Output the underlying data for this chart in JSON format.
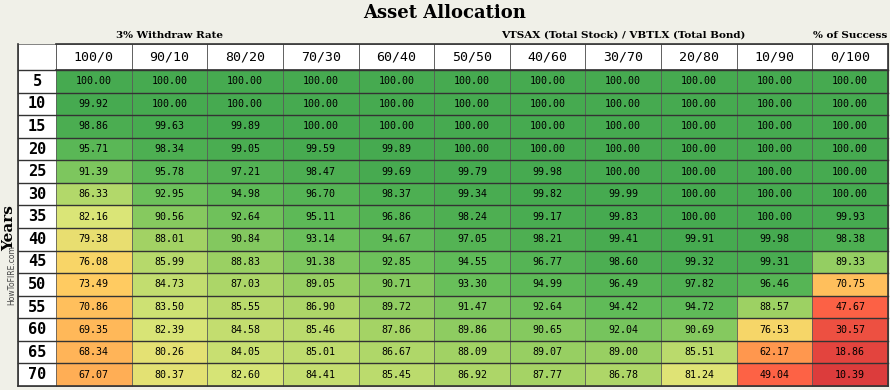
{
  "title": "Asset Allocation",
  "subtitle_left": "3% Withdraw Rate",
  "subtitle_center": "VTSAX (Total Stock) / VBTLX (Total Bond)",
  "subtitle_right": "% of Success",
  "col_headers": [
    "100/0",
    "90/10",
    "80/20",
    "70/30",
    "60/40",
    "50/50",
    "40/60",
    "30/70",
    "20/80",
    "10/90",
    "0/100"
  ],
  "row_headers": [
    "5",
    "10",
    "15",
    "20",
    "25",
    "30",
    "35",
    "40",
    "45",
    "50",
    "55",
    "60",
    "65",
    "70"
  ],
  "ylabel": "Years",
  "watermark": "HowToFIRE.com",
  "data": [
    [
      100.0,
      100.0,
      100.0,
      100.0,
      100.0,
      100.0,
      100.0,
      100.0,
      100.0,
      100.0,
      100.0
    ],
    [
      99.92,
      100.0,
      100.0,
      100.0,
      100.0,
      100.0,
      100.0,
      100.0,
      100.0,
      100.0,
      100.0
    ],
    [
      98.86,
      99.63,
      99.89,
      100.0,
      100.0,
      100.0,
      100.0,
      100.0,
      100.0,
      100.0,
      100.0
    ],
    [
      95.71,
      98.34,
      99.05,
      99.59,
      99.89,
      100.0,
      100.0,
      100.0,
      100.0,
      100.0,
      100.0
    ],
    [
      91.39,
      95.78,
      97.21,
      98.47,
      99.69,
      99.79,
      99.98,
      100.0,
      100.0,
      100.0,
      100.0
    ],
    [
      86.33,
      92.95,
      94.98,
      96.7,
      98.37,
      99.34,
      99.82,
      99.99,
      100.0,
      100.0,
      100.0
    ],
    [
      82.16,
      90.56,
      92.64,
      95.11,
      96.86,
      98.24,
      99.17,
      99.83,
      100.0,
      100.0,
      99.93
    ],
    [
      79.38,
      88.01,
      90.84,
      93.14,
      94.67,
      97.05,
      98.21,
      99.41,
      99.91,
      99.98,
      98.38
    ],
    [
      76.08,
      85.99,
      88.83,
      91.38,
      92.85,
      94.55,
      96.77,
      98.6,
      99.32,
      99.31,
      89.33
    ],
    [
      73.49,
      84.73,
      87.03,
      89.05,
      90.71,
      93.3,
      94.99,
      96.49,
      97.82,
      96.46,
      70.75
    ],
    [
      70.86,
      83.5,
      85.55,
      86.9,
      89.72,
      91.47,
      92.64,
      94.42,
      94.72,
      88.57,
      47.67
    ],
    [
      69.35,
      82.39,
      84.58,
      85.46,
      87.86,
      89.86,
      90.65,
      92.04,
      90.69,
      76.53,
      30.57
    ],
    [
      68.34,
      80.26,
      84.05,
      85.01,
      86.67,
      88.09,
      89.07,
      89.0,
      85.51,
      62.17,
      18.86
    ],
    [
      67.07,
      80.37,
      82.6,
      84.41,
      85.45,
      86.92,
      87.77,
      86.78,
      81.24,
      49.04,
      10.39
    ]
  ],
  "background_color": "#f0f0e8",
  "cell_fontsize": 7.2,
  "header_fontsize": 9.5,
  "row_header_fontsize": 11,
  "title_fontsize": 13,
  "subtitle_fontsize": 7.5,
  "ylabel_fontsize": 11,
  "watermark_fontsize": 5.5,
  "color_stops": [
    [
      0.0,
      [
        220,
        60,
        60
      ]
    ],
    [
      0.45,
      [
        255,
        100,
        70
      ]
    ],
    [
      0.6,
      [
        255,
        160,
        80
      ]
    ],
    [
      0.72,
      [
        255,
        210,
        100
      ]
    ],
    [
      0.8,
      [
        220,
        230,
        120
      ]
    ],
    [
      0.87,
      [
        160,
        210,
        100
      ]
    ],
    [
      0.93,
      [
        100,
        190,
        90
      ]
    ],
    [
      1.0,
      [
        70,
        170,
        80
      ]
    ]
  ]
}
